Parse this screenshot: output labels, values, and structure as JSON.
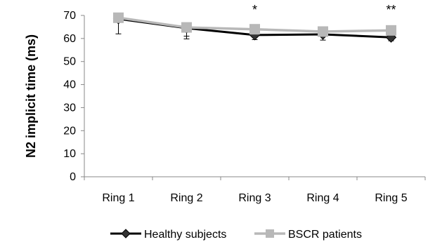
{
  "chart_data": {
    "type": "line",
    "title": "",
    "xlabel": "",
    "ylabel": "N2 implicit time (ms)",
    "ylim": [
      0,
      70
    ],
    "yticks": [
      0,
      10,
      20,
      30,
      40,
      50,
      60,
      70
    ],
    "categories": [
      "Ring 1",
      "Ring 2",
      "Ring 3",
      "Ring 4",
      "Ring 5"
    ],
    "grid": false,
    "legend_position": "bottom",
    "series": [
      {
        "name": "Healthy subjects",
        "values": [
          68.5,
          64.5,
          61.5,
          61.8,
          60.5
        ],
        "error": [
          6.5,
          3.5,
          2.0,
          2.5,
          1.5
        ],
        "color": "#000000",
        "marker": "diamond"
      },
      {
        "name": "BSCR patients",
        "values": [
          69.0,
          64.8,
          64.0,
          63.0,
          63.5
        ],
        "error": [
          1.5,
          5.0,
          2.0,
          1.5,
          1.5
        ],
        "color": "#b8b8b8",
        "marker": "square"
      }
    ],
    "annotations": [
      {
        "category": "Ring 3",
        "text": "*"
      },
      {
        "category": "Ring 5",
        "text": "**"
      }
    ]
  }
}
